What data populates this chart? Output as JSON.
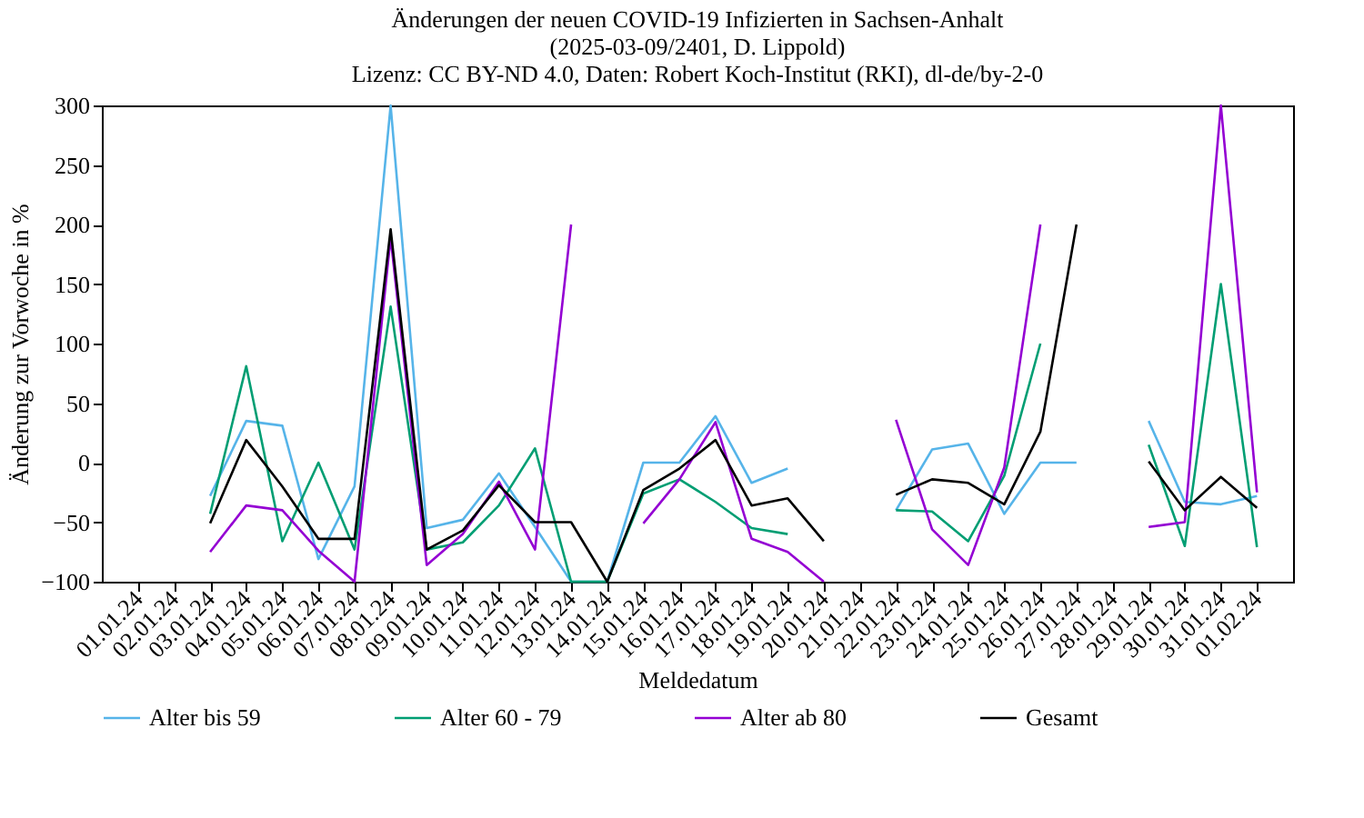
{
  "chart_data": {
    "type": "line",
    "title": "Änderungen der neuen COVID-19 Infizierten in Sachsen-Anhalt\n(2025-03-09/2401, D. Lippold)\nLizenz: CC BY-ND 4.0, Daten: Robert Koch-Institut (RKI), dl-de/by-2-0",
    "xlabel": "Meldedatum",
    "ylabel": "Änderung zur Vorwoche in %",
    "categories": [
      "01.01.24",
      "02.01.24",
      "03.01.24",
      "04.01.24",
      "05.01.24",
      "06.01.24",
      "07.01.24",
      "08.01.24",
      "09.01.24",
      "10.01.24",
      "11.01.24",
      "12.01.24",
      "13.01.24",
      "14.01.24",
      "15.01.24",
      "16.01.24",
      "17.01.24",
      "18.01.24",
      "19.01.24",
      "20.01.24",
      "21.01.24",
      "22.01.24",
      "23.01.24",
      "24.01.24",
      "25.01.24",
      "26.01.24",
      "27.01.24",
      "28.01.24",
      "29.01.24",
      "30.01.24",
      "31.01.24",
      "01.02.24"
    ],
    "ylim": [
      -100,
      300
    ],
    "yticks": [
      -100,
      -50,
      0,
      50,
      100,
      150,
      200,
      250,
      300
    ],
    "legend": "bottom",
    "series": [
      {
        "name": "Alter bis 59",
        "color": "#56b4e9",
        "values": [
          null,
          null,
          -28,
          35,
          31,
          -81,
          -20,
          300,
          -55,
          -48,
          -9,
          -54,
          -100,
          -100,
          0,
          0,
          39,
          -17,
          -5,
          null,
          null,
          -40,
          11,
          16,
          -43,
          0,
          0,
          null,
          35,
          -33,
          -35,
          -28
        ]
      },
      {
        "name": "Alter 60 - 79",
        "color": "#009e73",
        "values": [
          null,
          null,
          -43,
          81,
          -66,
          0,
          -73,
          131,
          -73,
          -67,
          -36,
          12,
          -100,
          -100,
          -26,
          -14,
          -33,
          -55,
          -60,
          null,
          null,
          -40,
          -41,
          -66,
          -11,
          100,
          null,
          null,
          15,
          -70,
          150,
          -71
        ]
      },
      {
        "name": "Alter ab 80",
        "color": "#9400d3",
        "values": [
          null,
          null,
          -75,
          -36,
          -40,
          -74,
          -100,
          189,
          -86,
          -60,
          -16,
          -73,
          200,
          null,
          -51,
          -14,
          34,
          -64,
          -75,
          -100,
          null,
          36,
          -56,
          -86,
          -4,
          200,
          null,
          null,
          -54,
          -50,
          300,
          -25
        ]
      },
      {
        "name": "Gesamt",
        "color": "#000000",
        "values": [
          null,
          null,
          -51,
          19,
          -20,
          -64,
          -64,
          196,
          -73,
          -57,
          -19,
          -50,
          -50,
          -100,
          -23,
          -5,
          19,
          -36,
          -30,
          -66,
          null,
          -27,
          -14,
          -17,
          -35,
          26,
          200,
          null,
          1,
          -40,
          -12,
          -38
        ]
      }
    ]
  }
}
